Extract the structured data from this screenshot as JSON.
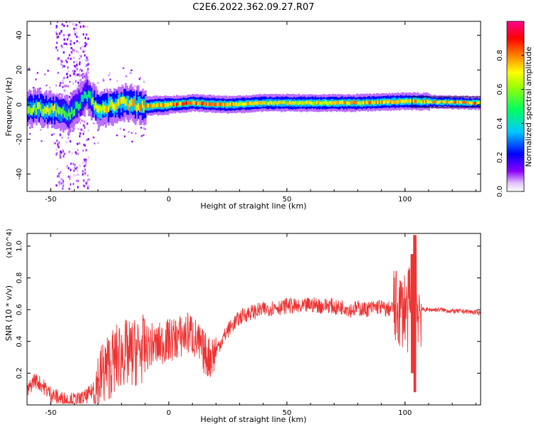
{
  "title": "C2E6.2022.362.09.27.R07",
  "chart_data": [
    {
      "type": "heatmap",
      "xlabel": "Height of straight line (km)",
      "ylabel": "Frequency (Hz)",
      "xlim": [
        -60,
        132
      ],
      "ylim": [
        -50,
        48
      ],
      "xticks": [
        -50,
        0,
        50,
        100
      ],
      "yticks": [
        -40,
        -20,
        0,
        20,
        40
      ],
      "grid": false,
      "colorbar": {
        "label": "Normalized spectral amplitude",
        "range": [
          0,
          1
        ],
        "ticks": [
          "0.0",
          "0.2",
          "0.4",
          "0.6",
          "0.8"
        ],
        "colors": [
          "#ffffff",
          "#e6c8ff",
          "#8000ff",
          "#0000ff",
          "#00c8ff",
          "#00ff80",
          "#ffff00",
          "#ff8000",
          "#ff0000",
          "#ff0080"
        ]
      },
      "ridge": [
        {
          "x": -58,
          "freq": -2,
          "amp": 0.7
        },
        {
          "x": -50,
          "freq": -3,
          "amp": 0.75
        },
        {
          "x": -42,
          "freq": -6,
          "amp": 0.6
        },
        {
          "x": -35,
          "freq": 6,
          "amp": 0.5
        },
        {
          "x": -30,
          "freq": -3,
          "amp": 0.8
        },
        {
          "x": -20,
          "freq": 1,
          "amp": 0.8
        },
        {
          "x": -10,
          "freq": -1,
          "amp": 0.85
        },
        {
          "x": 0,
          "freq": 0,
          "amp": 0.9
        },
        {
          "x": 10,
          "freq": 1,
          "amp": 0.9
        },
        {
          "x": 25,
          "freq": 0,
          "amp": 0.85
        },
        {
          "x": 40,
          "freq": 1,
          "amp": 0.75
        },
        {
          "x": 60,
          "freq": 1,
          "amp": 0.8
        },
        {
          "x": 80,
          "freq": 1,
          "amp": 0.85
        },
        {
          "x": 100,
          "freq": 2,
          "amp": 0.8
        },
        {
          "x": 132,
          "freq": 1,
          "amp": 0.9
        }
      ]
    },
    {
      "type": "line",
      "xlabel": "Height of straight line (km)",
      "ylabel": "SNR (10 * v/v)",
      "y_multiplier": "(x10^4)",
      "xlim": [
        -60,
        132
      ],
      "ylim": [
        0,
        1.08
      ],
      "xticks": [
        -50,
        0,
        50,
        100
      ],
      "yticks": [
        0.2,
        0.4,
        0.6,
        0.8,
        1.0
      ],
      "grid": false,
      "series": [
        {
          "color": "#ee3333",
          "x": [
            -60,
            -57,
            -54,
            -50,
            -46,
            -42,
            -38,
            -35,
            -33,
            -31,
            -29,
            -27,
            -25,
            -23,
            -21,
            -19,
            -17,
            -15,
            -13,
            -11,
            -9,
            -7,
            -5,
            -3,
            -1,
            1,
            3,
            5,
            7,
            9,
            11,
            13,
            15,
            17,
            19,
            21,
            23,
            25,
            28,
            31,
            34,
            37,
            40,
            43,
            46,
            48,
            50,
            53,
            56,
            59,
            62,
            65,
            68,
            71,
            74,
            77,
            80,
            83,
            86,
            89,
            92,
            95,
            98,
            100,
            101,
            102,
            103,
            104,
            105,
            107,
            110,
            115,
            120,
            125,
            132
          ],
          "y": [
            0.08,
            0.16,
            0.13,
            0.07,
            0.04,
            0.03,
            0.03,
            0.05,
            0.08,
            0.11,
            0.17,
            0.22,
            0.25,
            0.28,
            0.31,
            0.33,
            0.31,
            0.33,
            0.34,
            0.35,
            0.36,
            0.38,
            0.37,
            0.39,
            0.4,
            0.41,
            0.42,
            0.43,
            0.44,
            0.46,
            0.42,
            0.37,
            0.33,
            0.3,
            0.32,
            0.37,
            0.42,
            0.47,
            0.52,
            0.56,
            0.58,
            0.59,
            0.6,
            0.61,
            0.62,
            0.61,
            0.63,
            0.62,
            0.61,
            0.63,
            0.63,
            0.62,
            0.63,
            0.61,
            0.62,
            0.6,
            0.61,
            0.6,
            0.61,
            0.62,
            0.6,
            0.61,
            0.6,
            0.62,
            0.55,
            0.68,
            0.35,
            0.58,
            0.62,
            0.6,
            0.6,
            0.6,
            0.59,
            0.59,
            0.58
          ]
        }
      ]
    }
  ]
}
